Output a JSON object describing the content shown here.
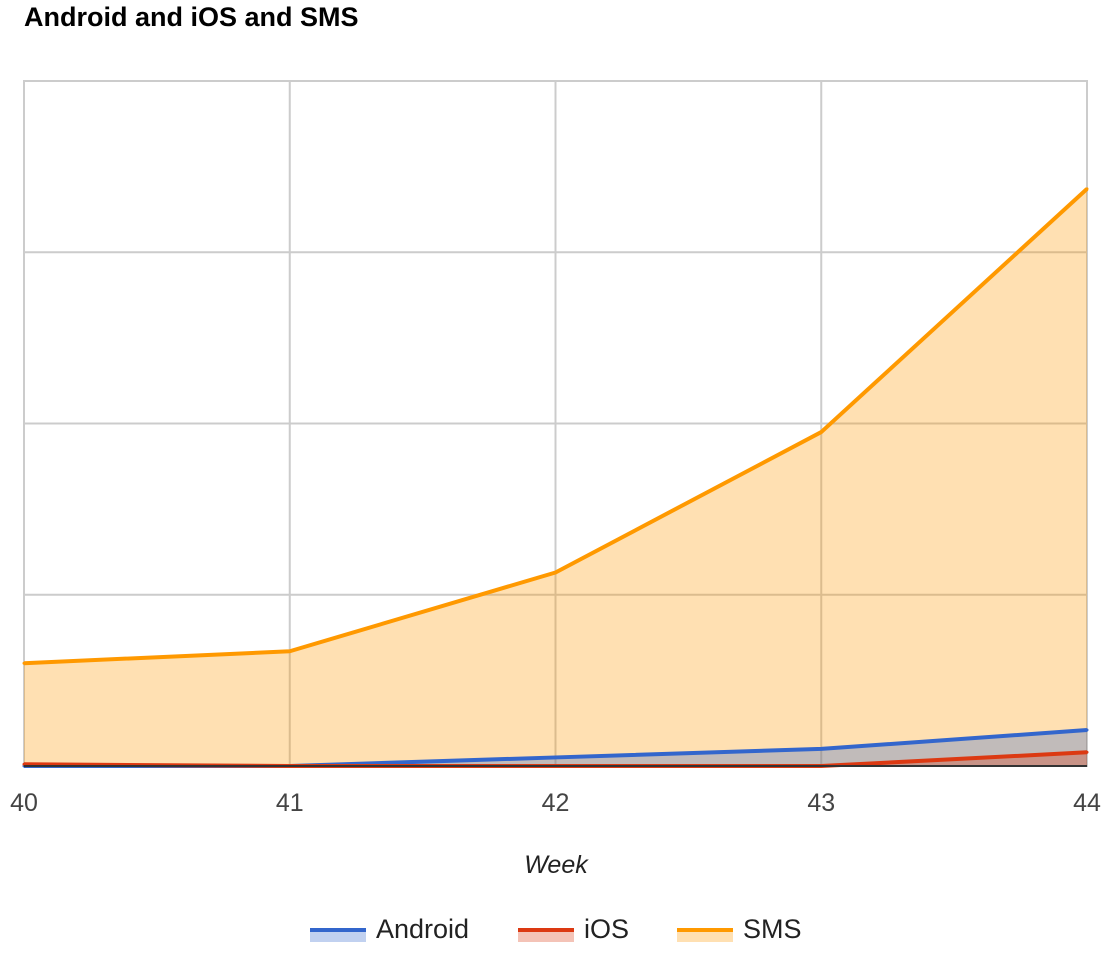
{
  "chart_data": {
    "type": "area",
    "title": "Android and iOS and SMS",
    "xlabel": "Week",
    "ylabel": "",
    "x": [
      "40",
      "41",
      "42",
      "43",
      "44"
    ],
    "ylim": [
      0,
      4
    ],
    "y_gridlines": 4,
    "grid": true,
    "y_tick_labels_shown": false,
    "legend_position": "bottom",
    "series": [
      {
        "name": "Android",
        "color": "#3366cc",
        "values": [
          0.0,
          0.0,
          0.05,
          0.1,
          0.21
        ]
      },
      {
        "name": "iOS",
        "color": "#dc3912",
        "values": [
          0.01,
          0.0,
          0.0,
          0.0,
          0.08
        ]
      },
      {
        "name": "SMS",
        "color": "#ff9900",
        "values": [
          0.6,
          0.67,
          1.13,
          1.95,
          3.37
        ]
      }
    ]
  }
}
